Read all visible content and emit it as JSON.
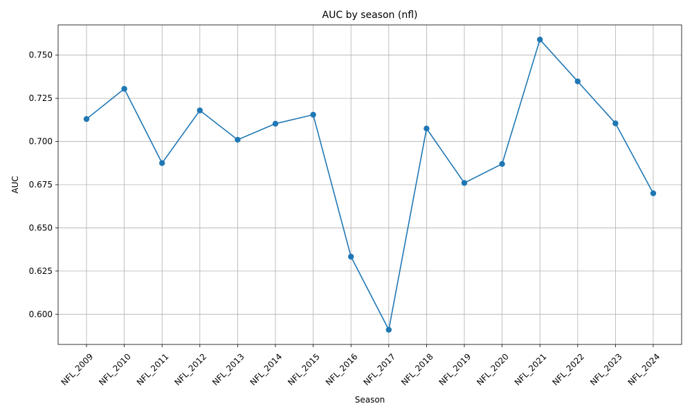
{
  "chart_data": {
    "type": "line",
    "title": "AUC by season (nfl)",
    "xlabel": "Season",
    "ylabel": "AUC",
    "categories": [
      "NFL_2009",
      "NFL_2010",
      "NFL_2011",
      "NFL_2012",
      "NFL_2013",
      "NFL_2014",
      "NFL_2015",
      "NFL_2016",
      "NFL_2017",
      "NFL_2018",
      "NFL_2019",
      "NFL_2020",
      "NFL_2021",
      "NFL_2022",
      "NFL_2023",
      "NFL_2024"
    ],
    "series": [
      {
        "values": [
          0.713,
          0.7305,
          0.6875,
          0.718,
          0.701,
          0.7103,
          0.7155,
          0.6333,
          0.591,
          0.7075,
          0.676,
          0.687,
          0.759,
          0.7348,
          0.7105,
          0.67
        ]
      }
    ],
    "ylim": [
      0.5825,
      0.7675
    ],
    "yticks": [
      0.6,
      0.625,
      0.65,
      0.675,
      0.7,
      0.725,
      0.75
    ],
    "ytick_labels": [
      "0.600",
      "0.625",
      "0.650",
      "0.675",
      "0.700",
      "0.725",
      "0.750"
    ],
    "grid": true,
    "markers": true,
    "line_color": "#1f77b4"
  }
}
